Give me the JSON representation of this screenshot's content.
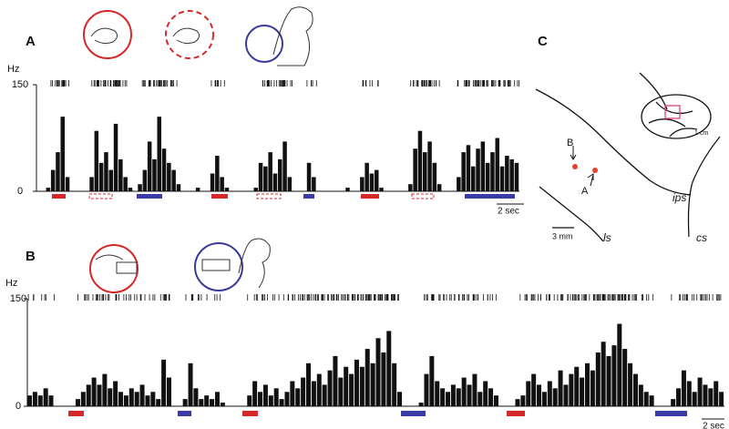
{
  "panel_labels": [
    "A",
    "B",
    "C"
  ],
  "chart_data": [
    {
      "type": "histogram",
      "y_axis_label": "Hz",
      "ylim": [
        0,
        150
      ],
      "yticks": [
        0,
        150
      ],
      "color": "#111111",
      "scale_bar": "2 sec",
      "values": [
        0,
        0,
        5,
        30,
        55,
        105,
        20,
        0,
        0,
        0,
        0,
        20,
        85,
        40,
        55,
        30,
        95,
        45,
        20,
        5,
        0,
        10,
        30,
        70,
        45,
        105,
        60,
        40,
        30,
        10,
        0,
        0,
        0,
        5,
        0,
        0,
        25,
        50,
        20,
        5,
        0,
        0,
        0,
        0,
        0,
        5,
        40,
        35,
        55,
        25,
        45,
        70,
        20,
        0,
        0,
        0,
        40,
        20,
        0,
        0,
        0,
        0,
        0,
        0,
        5,
        0,
        0,
        20,
        40,
        25,
        30,
        5,
        0,
        0,
        0,
        0,
        0,
        10,
        60,
        85,
        55,
        70,
        40,
        10,
        0,
        0,
        0,
        20,
        55,
        65,
        35,
        60,
        70,
        40,
        55,
        75,
        35,
        50,
        45,
        40
      ]
    },
    {
      "type": "histogram",
      "y_axis_label": "Hz",
      "ylim": [
        0,
        150
      ],
      "yticks": [
        0,
        150
      ],
      "color": "#111111",
      "scale_bar": "2 sec",
      "values": [
        15,
        20,
        15,
        25,
        15,
        0,
        0,
        0,
        0,
        10,
        20,
        30,
        40,
        30,
        45,
        25,
        35,
        20,
        15,
        25,
        20,
        30,
        15,
        20,
        10,
        65,
        40,
        0,
        0,
        10,
        60,
        25,
        10,
        15,
        10,
        20,
        5,
        0,
        0,
        0,
        0,
        15,
        35,
        20,
        30,
        15,
        25,
        10,
        20,
        35,
        25,
        40,
        60,
        35,
        45,
        30,
        50,
        70,
        40,
        55,
        45,
        65,
        55,
        80,
        60,
        95,
        75,
        105,
        60,
        20,
        0,
        0,
        0,
        5,
        45,
        70,
        35,
        25,
        20,
        30,
        25,
        40,
        30,
        45,
        20,
        35,
        25,
        15,
        0,
        0,
        0,
        10,
        15,
        35,
        45,
        30,
        20,
        35,
        25,
        50,
        30,
        45,
        55,
        40,
        60,
        50,
        75,
        90,
        70,
        85,
        115,
        80,
        60,
        45,
        30,
        20,
        15,
        0,
        0,
        0,
        10,
        25,
        50,
        35,
        20,
        40,
        30,
        25,
        35,
        20
      ]
    }
  ],
  "panel_c": {
    "sites": [
      "B",
      "A"
    ],
    "sulci": [
      "ips",
      "ls",
      "cs"
    ],
    "scale_bar": "3 mm",
    "inset_scale": "1 cm"
  }
}
